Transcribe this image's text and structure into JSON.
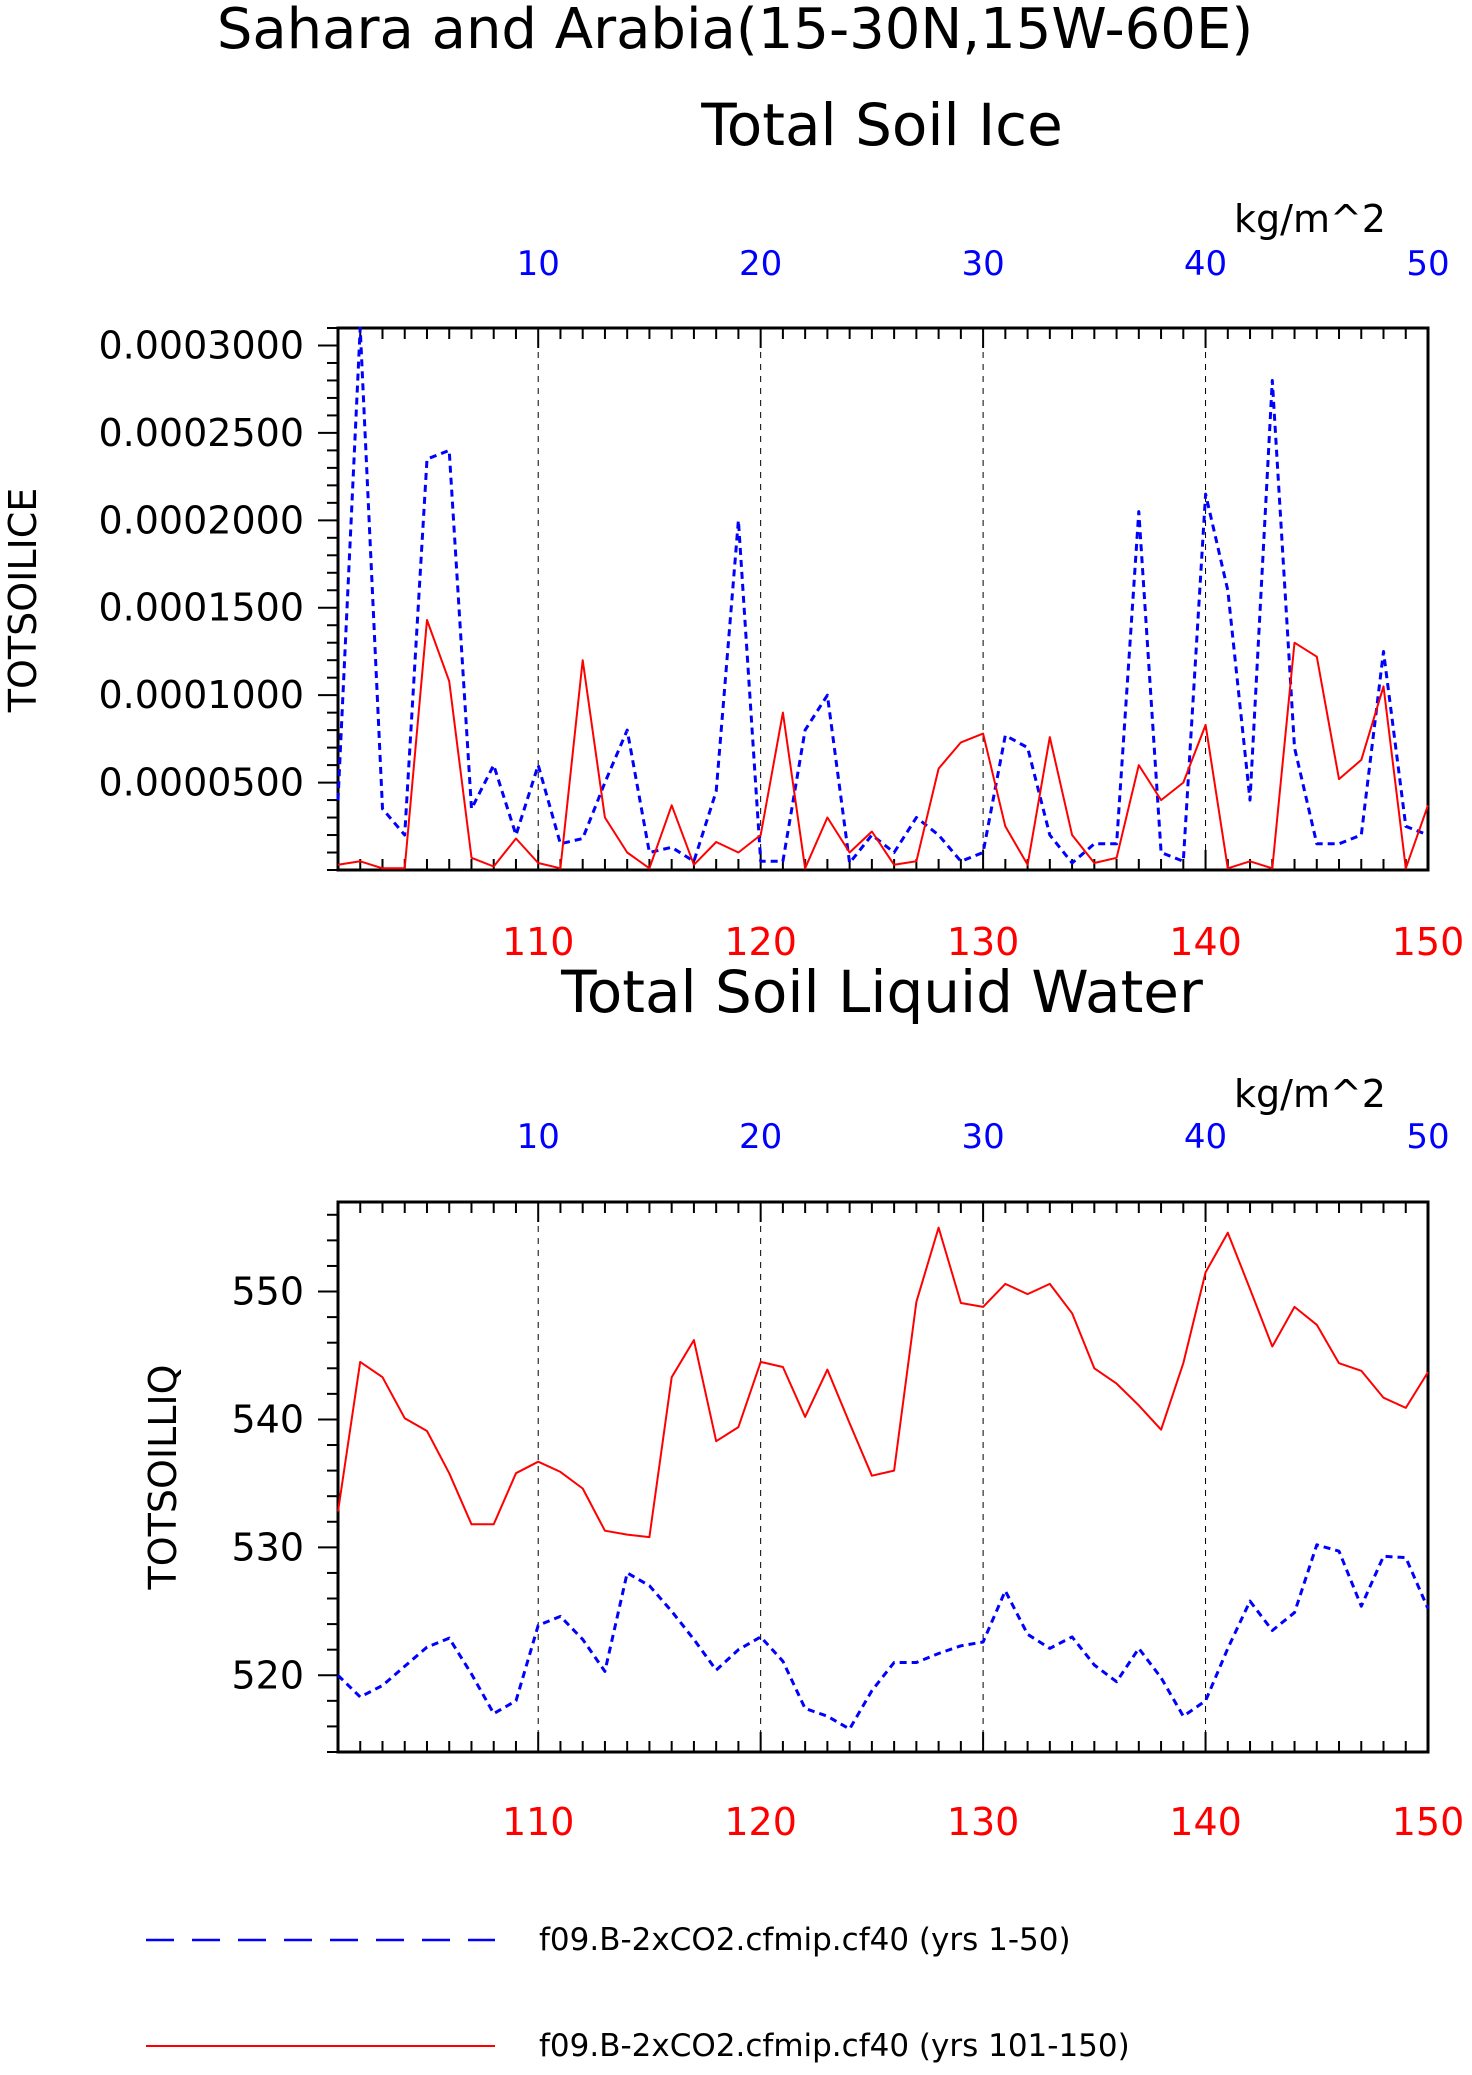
{
  "figure": {
    "title_line1": "Sahara and Arabia(15-30N,15W-60E)"
  },
  "chart_data": [
    {
      "type": "line",
      "title": "Total Soil Ice",
      "ylabel": "TOTSOILICE",
      "units": "kg/m^2",
      "ylim": [
        0,
        0.00031
      ],
      "yticks": [
        5e-05,
        0.0001,
        0.00015,
        0.0002,
        0.00025,
        0.0003
      ],
      "ytick_labels": [
        "0.0000500",
        "0.0001000",
        "0.0001500",
        "0.0002000",
        "0.0002500",
        "0.0003000"
      ],
      "grid": "vertical dashed at major x ticks",
      "top_axis": {
        "color": "#0000ff",
        "xlim": [
          1,
          50
        ],
        "ticks": [
          10,
          20,
          30,
          40,
          50
        ],
        "labels": [
          "10",
          "20",
          "30",
          "40",
          "50"
        ]
      },
      "bottom_axis": {
        "color": "#ff0000",
        "xlim": [
          101,
          150
        ],
        "ticks": [
          110,
          120,
          130,
          140,
          150
        ],
        "labels": [
          "110",
          "120",
          "130",
          "140",
          "150"
        ]
      },
      "series": [
        {
          "name": "f09.B-2xCO2.cfmip.cf40 (yrs 1-50)",
          "axis": "top",
          "color": "#0000ff",
          "style": "dashed",
          "x": [
            1,
            2,
            3,
            4,
            5,
            6,
            7,
            8,
            9,
            10,
            11,
            12,
            13,
            14,
            15,
            16,
            17,
            18,
            19,
            20,
            21,
            22,
            23,
            24,
            25,
            26,
            27,
            28,
            29,
            30,
            31,
            32,
            33,
            34,
            35,
            36,
            37,
            38,
            39,
            40,
            41,
            42,
            43,
            44,
            45,
            46,
            47,
            48,
            49,
            50
          ],
          "values": [
            4e-05,
            0.00031,
            3.5e-05,
            2e-05,
            0.000235,
            0.00024,
            3.5e-05,
            6e-05,
            2e-05,
            6e-05,
            1.5e-05,
            1.8e-05,
            5e-05,
            8e-05,
            1e-05,
            1.3e-05,
            5e-06,
            4.5e-05,
            0.0002,
            5e-06,
            5e-06,
            8e-05,
            0.0001,
            4e-06,
            2e-05,
            1e-05,
            3e-05,
            2e-05,
            5e-06,
            1e-05,
            7.7e-05,
            7e-05,
            2e-05,
            4e-06,
            1.5e-05,
            1.5e-05,
            0.000205,
            1e-05,
            5e-06,
            0.000215,
            0.00016,
            4e-05,
            0.00028,
            7e-05,
            1.5e-05,
            1.5e-05,
            2e-05,
            0.000125,
            2.5e-05,
            2e-05
          ]
        },
        {
          "name": "f09.B-2xCO2.cfmip.cf40 (yrs 101-150)",
          "axis": "bottom",
          "color": "#ff0000",
          "style": "solid",
          "x": [
            101,
            102,
            103,
            104,
            105,
            106,
            107,
            108,
            109,
            110,
            111,
            112,
            113,
            114,
            115,
            116,
            117,
            118,
            119,
            120,
            121,
            122,
            123,
            124,
            125,
            126,
            127,
            128,
            129,
            130,
            131,
            132,
            133,
            134,
            135,
            136,
            137,
            138,
            139,
            140,
            141,
            142,
            143,
            144,
            145,
            146,
            147,
            148,
            149,
            150
          ],
          "values": [
            3e-06,
            5e-06,
            1e-06,
            1e-06,
            0.000143,
            0.000108,
            7e-06,
            2e-06,
            1.8e-05,
            4e-06,
            1e-06,
            0.00012,
            3e-05,
            1e-05,
            1e-06,
            3.7e-05,
            3e-06,
            1.6e-05,
            1e-05,
            2e-05,
            9e-05,
            1e-06,
            3e-05,
            1e-05,
            2.2e-05,
            3e-06,
            5e-06,
            5.8e-05,
            7.3e-05,
            7.8e-05,
            2.5e-05,
            3e-06,
            7.6e-05,
            2e-05,
            4e-06,
            7e-06,
            6e-05,
            4e-05,
            5e-05,
            8.3e-05,
            1e-06,
            5e-06,
            1e-06,
            0.00013,
            0.000122,
            5.2e-05,
            6.3e-05,
            0.000105,
            1e-06,
            3.7e-05
          ]
        }
      ]
    },
    {
      "type": "line",
      "title": "Total Soil Liquid Water",
      "ylabel": "TOTSOILLIQ",
      "units": "kg/m^2",
      "ylim": [
        514,
        557
      ],
      "yticks": [
        520,
        530,
        540,
        550
      ],
      "ytick_labels": [
        "520",
        "530",
        "540",
        "550"
      ],
      "grid": "vertical dashed at major x ticks",
      "top_axis": {
        "color": "#0000ff",
        "xlim": [
          1,
          50
        ],
        "ticks": [
          10,
          20,
          30,
          40,
          50
        ],
        "labels": [
          "10",
          "20",
          "30",
          "40",
          "50"
        ]
      },
      "bottom_axis": {
        "color": "#ff0000",
        "xlim": [
          101,
          150
        ],
        "ticks": [
          110,
          120,
          130,
          140,
          150
        ],
        "labels": [
          "110",
          "120",
          "130",
          "140",
          "150"
        ]
      },
      "series": [
        {
          "name": "f09.B-2xCO2.cfmip.cf40 (yrs 1-50)",
          "axis": "top",
          "color": "#0000ff",
          "style": "dashed",
          "x": [
            1,
            2,
            3,
            4,
            5,
            6,
            7,
            8,
            9,
            10,
            11,
            12,
            13,
            14,
            15,
            16,
            17,
            18,
            19,
            20,
            21,
            22,
            23,
            24,
            25,
            26,
            27,
            28,
            29,
            30,
            31,
            32,
            33,
            34,
            35,
            36,
            37,
            38,
            39,
            40,
            41,
            42,
            43,
            44,
            45,
            46,
            47,
            48,
            49,
            50
          ],
          "values": [
            520.0,
            518.3,
            519.2,
            520.7,
            522.2,
            522.9,
            520.1,
            517.0,
            518.0,
            523.9,
            524.6,
            522.8,
            520.3,
            528.0,
            527.0,
            525.0,
            522.8,
            520.4,
            522.0,
            523.0,
            521.1,
            517.4,
            516.8,
            515.8,
            518.8,
            521.0,
            521.0,
            521.7,
            522.3,
            522.6,
            526.6,
            523.2,
            522.1,
            523.0,
            520.8,
            519.5,
            522.1,
            519.8,
            516.8,
            518.0,
            522.1,
            525.8,
            523.5,
            524.9,
            530.2,
            529.7,
            525.4,
            529.3,
            529.2,
            525.2
          ]
        },
        {
          "name": "f09.B-2xCO2.cfmip.cf40 (yrs 101-150)",
          "axis": "bottom",
          "color": "#ff0000",
          "style": "solid",
          "x": [
            101,
            102,
            103,
            104,
            105,
            106,
            107,
            108,
            109,
            110,
            111,
            112,
            113,
            114,
            115,
            116,
            117,
            118,
            119,
            120,
            121,
            122,
            123,
            124,
            125,
            126,
            127,
            128,
            129,
            130,
            131,
            132,
            133,
            134,
            135,
            136,
            137,
            138,
            139,
            140,
            141,
            142,
            143,
            144,
            145,
            146,
            147,
            148,
            149,
            150
          ],
          "values": [
            532.8,
            544.5,
            543.3,
            540.1,
            539.1,
            535.8,
            531.8,
            531.8,
            535.8,
            536.7,
            535.9,
            534.6,
            531.3,
            531.0,
            530.8,
            543.3,
            546.2,
            538.3,
            539.4,
            544.5,
            544.1,
            540.2,
            543.9,
            539.7,
            535.6,
            536.0,
            549.2,
            555.0,
            549.1,
            548.8,
            550.6,
            549.8,
            550.6,
            548.3,
            544.0,
            542.8,
            541.1,
            539.2,
            544.4,
            551.5,
            554.6,
            550.2,
            545.7,
            548.8,
            547.4,
            544.4,
            543.8,
            541.7,
            540.9,
            543.7
          ]
        }
      ]
    }
  ],
  "legend": {
    "position": "bottom",
    "entries": [
      {
        "label": "f09.B-2xCO2.cfmip.cf40 (yrs 1-50)",
        "color": "#0000ff",
        "style": "dashed"
      },
      {
        "label": "f09.B-2xCO2.cfmip.cf40 (yrs 101-150)",
        "color": "#ff0000",
        "style": "solid"
      }
    ]
  }
}
